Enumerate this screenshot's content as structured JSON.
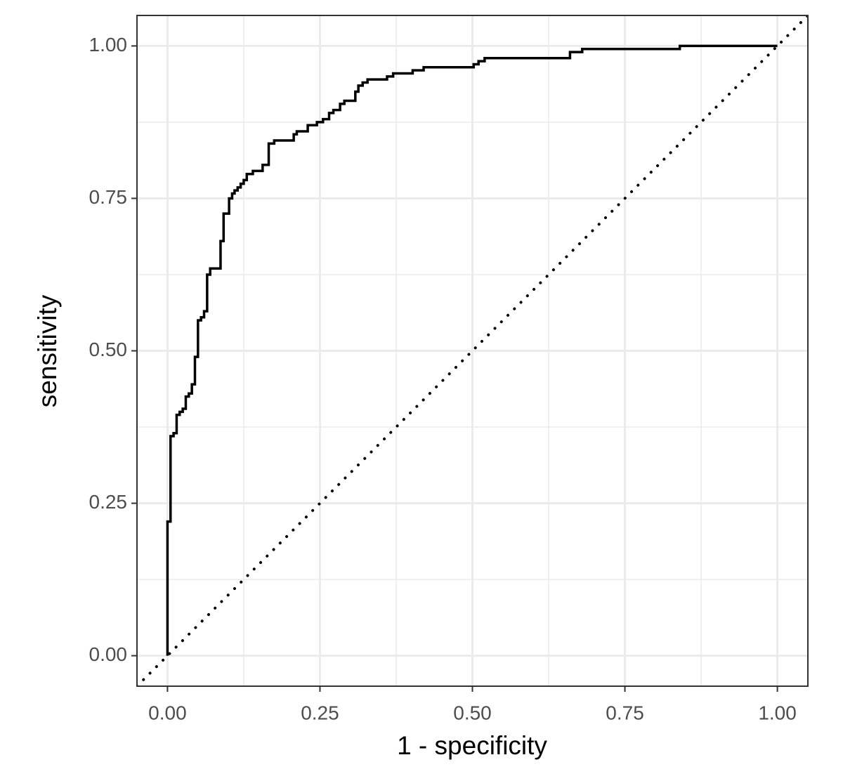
{
  "chart_data": {
    "type": "line",
    "xlabel": "1 - specificity",
    "ylabel": "sensitivity",
    "x": [
      0,
      0,
      0.005,
      0.005,
      0.01,
      0.01,
      0.015,
      0.015,
      0.02,
      0.02,
      0.025,
      0.025,
      0.03,
      0.03,
      0.035,
      0.035,
      0.04,
      0.04,
      0.045,
      0.045,
      0.05,
      0.05,
      0.055,
      0.055,
      0.06,
      0.06,
      0.065,
      0.065,
      0.07,
      0.07,
      0.087,
      0.087,
      0.092,
      0.092,
      0.101,
      0.101,
      0.106,
      0.106,
      0.11,
      0.11,
      0.115,
      0.115,
      0.12,
      0.12,
      0.125,
      0.125,
      0.13,
      0.13,
      0.14,
      0.14,
      0.156,
      0.156,
      0.166,
      0.166,
      0.175,
      0.175,
      0.207,
      0.207,
      0.212,
      0.212,
      0.23,
      0.23,
      0.245,
      0.245,
      0.255,
      0.255,
      0.265,
      0.265,
      0.272,
      0.272,
      0.283,
      0.283,
      0.29,
      0.29,
      0.308,
      0.308,
      0.313,
      0.313,
      0.32,
      0.32,
      0.328,
      0.328,
      0.36,
      0.36,
      0.37,
      0.37,
      0.402,
      0.402,
      0.42,
      0.42,
      0.502,
      0.502,
      0.51,
      0.51,
      0.52,
      0.52,
      0.66,
      0.66,
      0.68,
      0.68,
      0.84,
      0.84,
      1
    ],
    "series": [
      {
        "color": "#000000",
        "values": [
          0,
          0.22,
          0.22,
          0.36,
          0.36,
          0.365,
          0.365,
          0.395,
          0.395,
          0.4,
          0.4,
          0.405,
          0.405,
          0.425,
          0.425,
          0.43,
          0.43,
          0.445,
          0.445,
          0.49,
          0.49,
          0.55,
          0.55,
          0.555,
          0.555,
          0.565,
          0.565,
          0.625,
          0.625,
          0.635,
          0.635,
          0.68,
          0.68,
          0.725,
          0.725,
          0.75,
          0.75,
          0.758,
          0.758,
          0.763,
          0.763,
          0.768,
          0.768,
          0.774,
          0.774,
          0.78,
          0.78,
          0.79,
          0.79,
          0.795,
          0.795,
          0.805,
          0.805,
          0.84,
          0.84,
          0.845,
          0.845,
          0.855,
          0.855,
          0.86,
          0.86,
          0.87,
          0.87,
          0.875,
          0.875,
          0.88,
          0.88,
          0.89,
          0.89,
          0.895,
          0.895,
          0.905,
          0.905,
          0.91,
          0.91,
          0.925,
          0.925,
          0.935,
          0.935,
          0.94,
          0.94,
          0.945,
          0.945,
          0.95,
          0.95,
          0.955,
          0.955,
          0.96,
          0.96,
          0.965,
          0.965,
          0.97,
          0.97,
          0.975,
          0.975,
          0.98,
          0.98,
          0.99,
          0.99,
          0.995,
          0.995,
          1,
          1
        ]
      }
    ],
    "reference_line": {
      "slope": 1,
      "intercept": 0,
      "color": "#000000"
    },
    "xlim": [
      -0.05,
      1.05
    ],
    "ylim": [
      -0.05,
      1.05
    ],
    "xticks": [
      {
        "value": 0,
        "label": "0.00"
      },
      {
        "value": 0.25,
        "label": "0.25"
      },
      {
        "value": 0.5,
        "label": "0.50"
      },
      {
        "value": 0.75,
        "label": "0.75"
      },
      {
        "value": 1,
        "label": "1.00"
      }
    ],
    "yticks": [
      {
        "value": 0,
        "label": "0.00"
      },
      {
        "value": 0.25,
        "label": "0.25"
      },
      {
        "value": 0.5,
        "label": "0.50"
      },
      {
        "value": 0.75,
        "label": "0.75"
      },
      {
        "value": 1,
        "label": "1.00"
      }
    ],
    "minor_xticks": [
      0.125,
      0.375,
      0.625,
      0.875
    ],
    "minor_yticks": [
      0.125,
      0.375,
      0.625,
      0.875
    ],
    "grid": true
  }
}
